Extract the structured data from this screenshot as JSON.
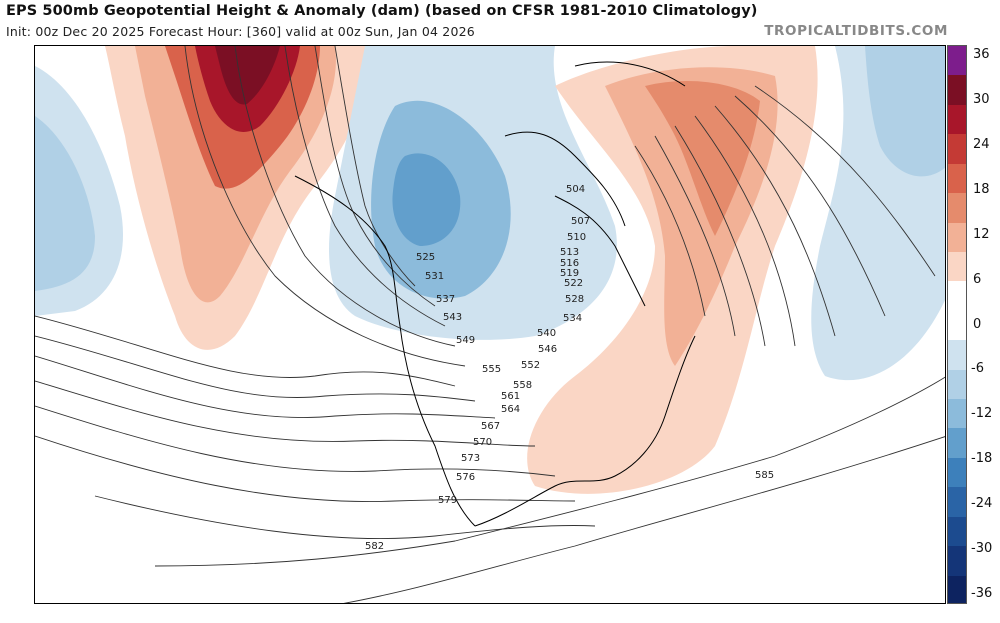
{
  "title": "EPS 500mb Geopotential Height & Anomaly (dam) (based on CFSR 1981-2010 Climatology)",
  "subtitle": "Init: 00z Dec 20 2025   Forecast Hour: [360]   valid at 00z Sun, Jan 04 2026",
  "brand": "TROPICALTIDBITS.COM",
  "colors": {
    "red_strong": "#a8162a",
    "red_mid": "#e07a60",
    "red_light": "#f6c7ad",
    "blue_light": "#bdd7e6",
    "blue_mid": "#8fbcd9",
    "blue_strong": "#4a8dc0",
    "contour": "#333333"
  },
  "colorbar": {
    "ticks": [
      "36",
      "30",
      "24",
      "18",
      "12",
      "6",
      "0",
      "-6",
      "-12",
      "-18",
      "-24",
      "-30",
      "-36"
    ],
    "segments": [
      "#7d1d8c",
      "#7b0f24",
      "#a8162a",
      "#c43a35",
      "#d9624b",
      "#e58b6c",
      "#f2b196",
      "#fad6c5",
      "#ffffff",
      "#ffffff",
      "#cfe2ef",
      "#b0d0e6",
      "#8cbbdb",
      "#629fcc",
      "#3d80bb",
      "#2a64a6",
      "#1c4b8f",
      "#143578",
      "#0d2360"
    ]
  },
  "contour_labels": [
    "504",
    "507",
    "510",
    "513",
    "516",
    "519",
    "522",
    "525",
    "528",
    "531",
    "534",
    "537",
    "540",
    "543",
    "546",
    "549",
    "552",
    "555",
    "558",
    "561",
    "564",
    "567",
    "570",
    "573",
    "576",
    "579",
    "582",
    "585"
  ]
}
